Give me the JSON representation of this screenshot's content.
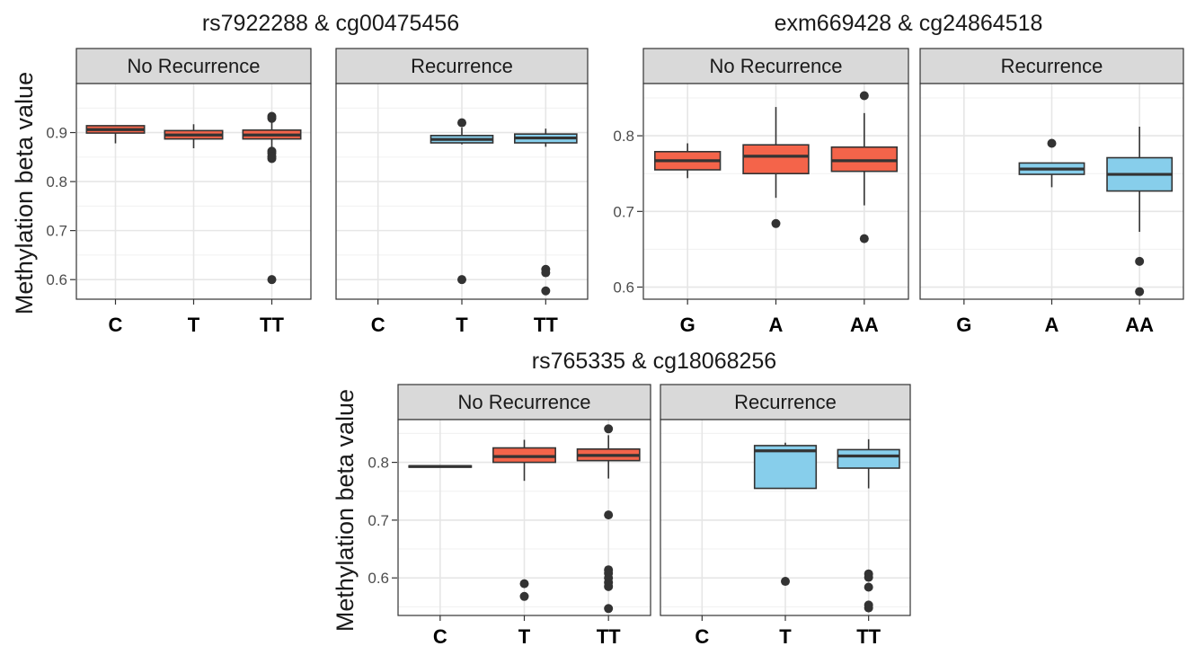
{
  "chart_data": [
    {
      "type": "box",
      "title": "rs7922288 & cg00475456",
      "ylabel": "Methylation beta value",
      "xlabel": "",
      "ylim": [
        0.56,
        1.0
      ],
      "yticks": [
        0.6,
        0.7,
        0.8,
        0.9
      ],
      "categories": [
        "C",
        "T",
        "TT"
      ],
      "facets": [
        {
          "label": "No Recurrence",
          "fill": "#F4644A",
          "boxes": [
            {
              "x": "C",
              "min": 0.878,
              "q1": 0.899,
              "median": 0.906,
              "q3": 0.914,
              "max": 0.914,
              "outliers": []
            },
            {
              "x": "T",
              "min": 0.868,
              "q1": 0.887,
              "median": 0.895,
              "q3": 0.904,
              "max": 0.917,
              "outliers": []
            },
            {
              "x": "TT",
              "min": 0.866,
              "q1": 0.887,
              "median": 0.895,
              "q3": 0.905,
              "max": 0.924,
              "outliers": [
                0.933,
                0.929,
                0.862,
                0.858,
                0.851,
                0.847,
                0.6
              ]
            }
          ]
        },
        {
          "label": "Recurrence",
          "fill": "#87CEEB",
          "boxes": [
            {
              "x": "C",
              "empty": true
            },
            {
              "x": "T",
              "min": 0.876,
              "q1": 0.879,
              "median": 0.886,
              "q3": 0.894,
              "max": 0.91,
              "outliers": [
                0.92,
                0.6
              ]
            },
            {
              "x": "TT",
              "min": 0.871,
              "q1": 0.879,
              "median": 0.889,
              "q3": 0.897,
              "max": 0.908,
              "outliers": [
                0.621,
                0.614,
                0.577
              ]
            }
          ]
        }
      ]
    },
    {
      "type": "box",
      "title": "exm669428 & cg24864518",
      "ylabel": "",
      "xlabel": "",
      "ylim": [
        0.584,
        0.869
      ],
      "yticks": [
        0.6,
        0.7,
        0.8
      ],
      "categories": [
        "G",
        "A",
        "AA"
      ],
      "facets": [
        {
          "label": "No Recurrence",
          "fill": "#F4644A",
          "boxes": [
            {
              "x": "G",
              "min": 0.744,
              "q1": 0.755,
              "median": 0.767,
              "q3": 0.779,
              "max": 0.79,
              "outliers": []
            },
            {
              "x": "A",
              "min": 0.718,
              "q1": 0.75,
              "median": 0.773,
              "q3": 0.788,
              "max": 0.838,
              "outliers": [
                0.684
              ]
            },
            {
              "x": "AA",
              "min": 0.708,
              "q1": 0.753,
              "median": 0.767,
              "q3": 0.785,
              "max": 0.83,
              "outliers": [
                0.853,
                0.664
              ]
            }
          ]
        },
        {
          "label": "Recurrence",
          "fill": "#87CEEB",
          "boxes": [
            {
              "x": "G",
              "empty": true
            },
            {
              "x": "A",
              "min": 0.732,
              "q1": 0.749,
              "median": 0.756,
              "q3": 0.764,
              "max": 0.764,
              "outliers": [
                0.79
              ]
            },
            {
              "x": "AA",
              "min": 0.673,
              "q1": 0.727,
              "median": 0.749,
              "q3": 0.771,
              "max": 0.812,
              "outliers": [
                0.634,
                0.594
              ]
            }
          ]
        }
      ]
    },
    {
      "type": "box",
      "title": "rs765335 & cg18068256",
      "ylabel": "Methylation beta value",
      "xlabel": "",
      "ylim": [
        0.535,
        0.874
      ],
      "yticks": [
        0.6,
        0.7,
        0.8
      ],
      "categories": [
        "C",
        "T",
        "TT"
      ],
      "facets": [
        {
          "label": "No Recurrence",
          "fill": "#F4644A",
          "boxes": [
            {
              "x": "C",
              "min": 0.792,
              "q1": 0.792,
              "median": 0.793,
              "q3": 0.794,
              "max": 0.794,
              "outliers": []
            },
            {
              "x": "T",
              "min": 0.768,
              "q1": 0.8,
              "median": 0.81,
              "q3": 0.825,
              "max": 0.839,
              "outliers": [
                0.59,
                0.568
              ]
            },
            {
              "x": "TT",
              "min": 0.772,
              "q1": 0.803,
              "median": 0.812,
              "q3": 0.823,
              "max": 0.847,
              "outliers": [
                0.858,
                0.709,
                0.614,
                0.608,
                0.6,
                0.592,
                0.585,
                0.547
              ]
            }
          ]
        },
        {
          "label": "Recurrence",
          "fill": "#87CEEB",
          "boxes": [
            {
              "x": "C",
              "empty": true
            },
            {
              "x": "T",
              "min": 0.755,
              "q1": 0.755,
              "median": 0.82,
              "q3": 0.829,
              "max": 0.834,
              "outliers": [
                0.594
              ]
            },
            {
              "x": "TT",
              "min": 0.755,
              "q1": 0.79,
              "median": 0.811,
              "q3": 0.822,
              "max": 0.84,
              "outliers": [
                0.607,
                0.601,
                0.584,
                0.553,
                0.548
              ]
            }
          ]
        }
      ]
    }
  ]
}
